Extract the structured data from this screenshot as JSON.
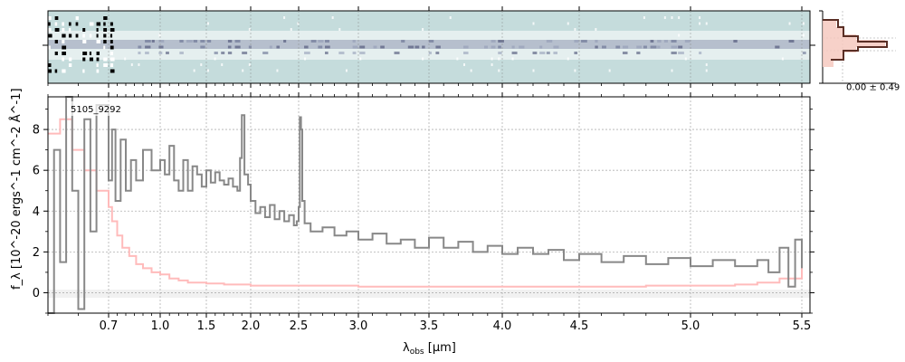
{
  "chart_data": {
    "type": "line",
    "id_label": "5105_9292",
    "xlabel_main": "λ",
    "xlabel_sub": "obs",
    "xlabel_unit": " [μm]",
    "ylabel": "f_λ [10^-20 ergs^-1 cm^-2 Å^-1]",
    "xscale": "nonlinear (wavelength-to-pixel, compressed at long wavelengths)",
    "xlim": [
      0.6,
      5.52
    ],
    "ylim": [
      -1,
      9.6
    ],
    "grid": true,
    "xticks": [
      "0.7",
      "1.0",
      "1.5",
      "2.0",
      "2.5",
      "3.0",
      "3.5",
      "4.0",
      "4.5",
      "5.0",
      "5.5"
    ],
    "yticks": [
      "0",
      "2",
      "4",
      "6",
      "8"
    ],
    "colors": {
      "flux": "#888888",
      "error": "#ffbbbb",
      "twod_bg": "#c5dcdc",
      "twod_dark": "#2a2f52",
      "profile": "#5a2e25",
      "profile_fill": "#f6c9c0"
    },
    "series": [
      {
        "role": "flux (grey)",
        "points": [
          [
            0.6,
            -1.0
          ],
          [
            0.61,
            7.0
          ],
          [
            0.62,
            1.5
          ],
          [
            0.63,
            9.6
          ],
          [
            0.64,
            5.0
          ],
          [
            0.65,
            -0.8
          ],
          [
            0.66,
            8.5
          ],
          [
            0.67,
            3.0
          ],
          [
            0.68,
            9.2
          ],
          [
            0.7,
            5.5
          ],
          [
            0.72,
            8.0
          ],
          [
            0.74,
            4.5
          ],
          [
            0.77,
            7.5
          ],
          [
            0.8,
            5.0
          ],
          [
            0.83,
            6.5
          ],
          [
            0.86,
            5.5
          ],
          [
            0.9,
            7.0
          ],
          [
            0.95,
            6.0
          ],
          [
            1.0,
            6.5
          ],
          [
            1.05,
            5.8
          ],
          [
            1.1,
            7.2
          ],
          [
            1.15,
            5.5
          ],
          [
            1.2,
            5.0
          ],
          [
            1.25,
            6.5
          ],
          [
            1.3,
            5.0
          ],
          [
            1.35,
            6.2
          ],
          [
            1.4,
            5.8
          ],
          [
            1.45,
            5.2
          ],
          [
            1.5,
            6.0
          ],
          [
            1.55,
            5.4
          ],
          [
            1.6,
            5.9
          ],
          [
            1.65,
            5.5
          ],
          [
            1.7,
            5.3
          ],
          [
            1.75,
            5.6
          ],
          [
            1.8,
            5.2
          ],
          [
            1.85,
            5.0
          ],
          [
            1.88,
            6.6
          ],
          [
            1.9,
            8.7
          ],
          [
            1.93,
            5.8
          ],
          [
            1.97,
            5.3
          ],
          [
            2.0,
            4.5
          ],
          [
            2.05,
            3.9
          ],
          [
            2.1,
            4.2
          ],
          [
            2.15,
            3.7
          ],
          [
            2.2,
            4.3
          ],
          [
            2.25,
            3.6
          ],
          [
            2.3,
            4.0
          ],
          [
            2.35,
            3.5
          ],
          [
            2.4,
            3.8
          ],
          [
            2.45,
            3.3
          ],
          [
            2.48,
            3.5
          ],
          [
            2.5,
            4.2
          ],
          [
            2.51,
            8.6
          ],
          [
            2.52,
            8.0
          ],
          [
            2.53,
            4.5
          ],
          [
            2.55,
            3.4
          ],
          [
            2.6,
            3.0
          ],
          [
            2.7,
            3.2
          ],
          [
            2.8,
            2.8
          ],
          [
            2.9,
            3.0
          ],
          [
            3.0,
            2.6
          ],
          [
            3.1,
            2.9
          ],
          [
            3.2,
            2.4
          ],
          [
            3.3,
            2.6
          ],
          [
            3.4,
            2.2
          ],
          [
            3.5,
            2.7
          ],
          [
            3.6,
            2.2
          ],
          [
            3.7,
            2.5
          ],
          [
            3.8,
            2.0
          ],
          [
            3.9,
            2.3
          ],
          [
            4.0,
            1.9
          ],
          [
            4.1,
            2.2
          ],
          [
            4.2,
            1.9
          ],
          [
            4.3,
            2.1
          ],
          [
            4.4,
            1.6
          ],
          [
            4.5,
            1.9
          ],
          [
            4.6,
            1.5
          ],
          [
            4.7,
            1.8
          ],
          [
            4.8,
            1.4
          ],
          [
            4.9,
            1.7
          ],
          [
            5.0,
            1.3
          ],
          [
            5.1,
            1.6
          ],
          [
            5.2,
            1.3
          ],
          [
            5.3,
            1.6
          ],
          [
            5.35,
            1.0
          ],
          [
            5.4,
            2.2
          ],
          [
            5.44,
            0.3
          ],
          [
            5.47,
            2.6
          ],
          [
            5.5,
            1.2
          ]
        ]
      },
      {
        "role": "uncertainty (pink)",
        "points": [
          [
            0.6,
            7.8
          ],
          [
            0.62,
            8.5
          ],
          [
            0.64,
            7.0
          ],
          [
            0.66,
            6.0
          ],
          [
            0.68,
            5.0
          ],
          [
            0.7,
            4.2
          ],
          [
            0.72,
            3.5
          ],
          [
            0.75,
            2.8
          ],
          [
            0.78,
            2.2
          ],
          [
            0.82,
            1.8
          ],
          [
            0.86,
            1.4
          ],
          [
            0.9,
            1.2
          ],
          [
            0.95,
            1.0
          ],
          [
            1.0,
            0.9
          ],
          [
            1.1,
            0.7
          ],
          [
            1.2,
            0.6
          ],
          [
            1.3,
            0.5
          ],
          [
            1.5,
            0.45
          ],
          [
            1.7,
            0.4
          ],
          [
            2.0,
            0.35
          ],
          [
            2.5,
            0.35
          ],
          [
            3.0,
            0.3
          ],
          [
            3.5,
            0.3
          ],
          [
            4.0,
            0.3
          ],
          [
            4.5,
            0.3
          ],
          [
            4.8,
            0.35
          ],
          [
            5.0,
            0.35
          ],
          [
            5.2,
            0.4
          ],
          [
            5.3,
            0.5
          ],
          [
            5.4,
            0.7
          ],
          [
            5.5,
            1.2
          ]
        ]
      }
    ],
    "profile_label": "0.00 ± 0.49"
  }
}
